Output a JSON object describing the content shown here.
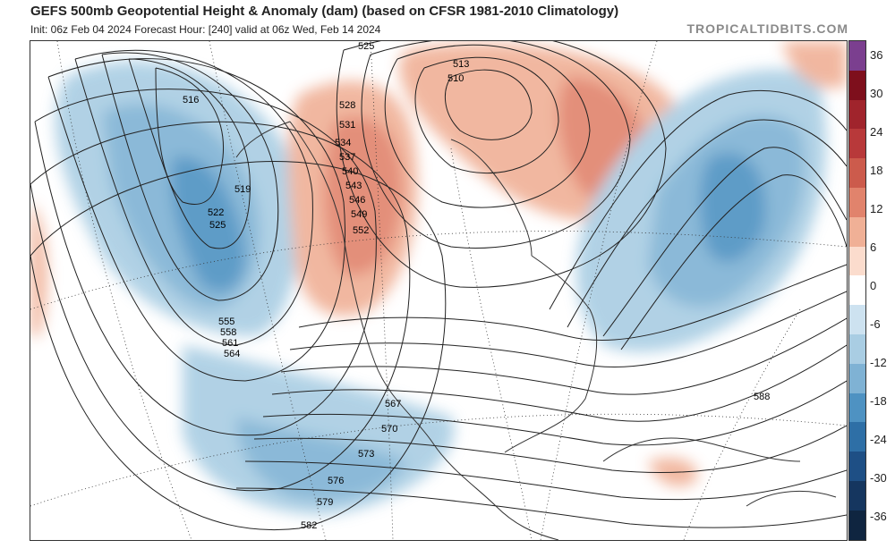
{
  "header": {
    "title": "GEFS 500mb Geopotential Height & Anomaly (dam) (based on CFSR 1981-2010 Climatology)",
    "subtitle": "Init: 06z Feb 04 2024   Forecast Hour: [240]   valid at 06z Wed, Feb 14 2024",
    "brand": "TROPICALTIDBITS.COM"
  },
  "colorbar": {
    "ticks": [
      "36",
      "30",
      "24",
      "18",
      "12",
      "6",
      "0",
      "-6",
      "-12",
      "-18",
      "-24",
      "-30",
      "-36"
    ],
    "colors": [
      "#7b3f8f",
      "#7e0f1c",
      "#a0242c",
      "#b8393a",
      "#cc5b4c",
      "#e1836c",
      "#f0b096",
      "#fbdccd",
      "#ffffff",
      "#cde2f0",
      "#a9cde3",
      "#7fb2d4",
      "#4e92c2",
      "#2e6fa6",
      "#1e4f85",
      "#15365f",
      "#0f2540"
    ]
  },
  "contour_labels": [
    "516",
    "519",
    "522",
    "525",
    "528",
    "531",
    "534",
    "537",
    "540",
    "543",
    "546",
    "549",
    "552",
    "555",
    "558",
    "561",
    "564",
    "567",
    "570",
    "573",
    "576",
    "579",
    "582",
    "588",
    "510",
    "513",
    "525"
  ],
  "colors": {
    "positive": "#e8957a",
    "negative": "#5a9bc9",
    "land": "#444444"
  }
}
